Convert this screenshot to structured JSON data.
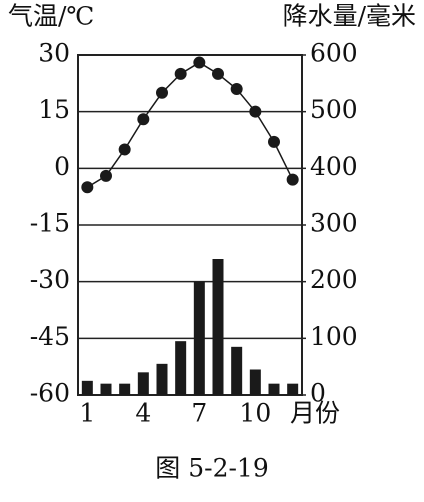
{
  "chart_data": {
    "type": "combo",
    "y_label": "气温/℃",
    "y2_label": "降水量/毫米",
    "x_label": "月份",
    "caption": "图 5-2-19",
    "categories": [
      "1",
      null,
      null,
      "4",
      null,
      null,
      "7",
      null,
      null,
      "10",
      null,
      null
    ],
    "ylim": [
      -60,
      30
    ],
    "yticks": [
      -60,
      -45,
      -30,
      -15,
      0,
      15,
      30
    ],
    "y2lim": [
      0,
      600
    ],
    "y2ticks": [
      0,
      100,
      200,
      300,
      400,
      500,
      600
    ],
    "grid": true,
    "series": [
      {
        "type": "line",
        "color": "#1a1a1a",
        "values": [
          -5,
          -2,
          5,
          13,
          20,
          25,
          28,
          25,
          21,
          15,
          7,
          -3
        ]
      },
      {
        "type": "bar",
        "axis": "y2",
        "color": "#1a1a1a",
        "values": [
          25,
          20,
          20,
          40,
          55,
          95,
          200,
          240,
          85,
          45,
          20,
          20
        ]
      }
    ]
  }
}
